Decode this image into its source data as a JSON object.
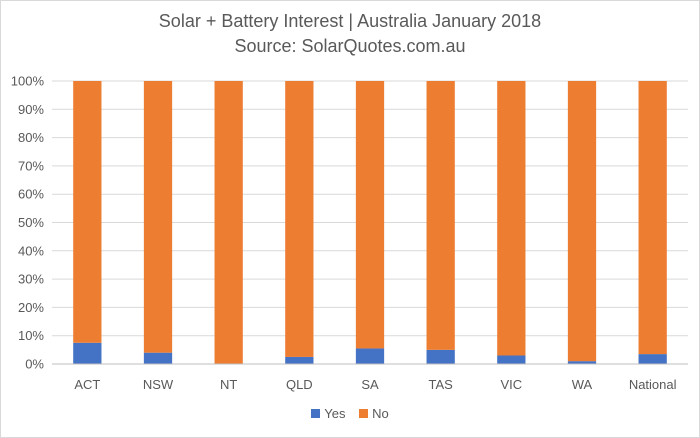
{
  "chart_data": {
    "type": "bar",
    "stacked": true,
    "title": "Solar + Battery Interest | Australia January 2018",
    "subtitle": "Source: SolarQuotes.com.au",
    "categories": [
      "ACT",
      "NSW",
      "NT",
      "QLD",
      "SA",
      "TAS",
      "VIC",
      "WA",
      "National"
    ],
    "series": [
      {
        "name": "Yes",
        "color": "#4472c4",
        "values": [
          7.5,
          4,
          0,
          2.5,
          5.5,
          5,
          3,
          1,
          3.5
        ]
      },
      {
        "name": "No",
        "color": "#ed7d31",
        "values": [
          92.5,
          96,
          100,
          97.5,
          94.5,
          95,
          97,
          99,
          96.5
        ]
      }
    ],
    "ylim": [
      0,
      100
    ],
    "yticks": [
      "0%",
      "10%",
      "20%",
      "30%",
      "40%",
      "50%",
      "60%",
      "70%",
      "80%",
      "90%",
      "100%"
    ],
    "grid": true,
    "legend_position": "bottom"
  }
}
